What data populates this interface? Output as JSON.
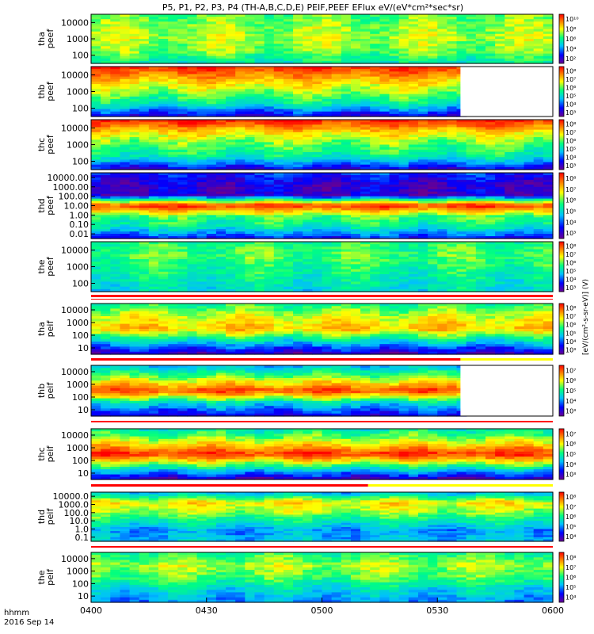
{
  "title": "P5, P1, P2, P3, P4 (TH-A,B,C,D,E) PEIF,PEEF EFlux eV/(eV*cm²*sec*sr)",
  "colorbar_unit_label": "[eV/(cm²-s-sr-eV)] (V)",
  "footer": {
    "time_label": "hhmm",
    "date_label": "2016 Sep 14"
  },
  "colors": {
    "scale": [
      "#6a0090",
      "#0000ff",
      "#00bfff",
      "#00ff80",
      "#ffff00",
      "#ff8000",
      "#ff0000"
    ],
    "line_red": "#ff0000",
    "line_yellow": "#ffff00"
  },
  "chart_data": {
    "type": "heatmap",
    "xlabel": "",
    "x_ticks": [
      "0400",
      "0430",
      "0500",
      "0530",
      "0600"
    ],
    "xlim": [
      "04:00",
      "06:00"
    ],
    "panels": [
      {
        "name": "tha peef",
        "ylabel": [
          "tha",
          "peef"
        ],
        "y_ticks": [
          "10000",
          "1000",
          "100"
        ],
        "cbar_ticks": [
          "10¹⁰",
          "10⁸",
          "10⁶",
          "10⁴",
          "10²"
        ],
        "profile": [
          0.55,
          0.6,
          0.62,
          0.58,
          0.45
        ],
        "data_end_frac": 1.0
      },
      {
        "name": "thb peef",
        "ylabel": [
          "thb",
          "peef"
        ],
        "y_ticks": [
          "10000",
          "1000",
          "100"
        ],
        "cbar_ticks": [
          "10⁸",
          "10⁷",
          "10⁶",
          "10⁵",
          "10⁴",
          "10³"
        ],
        "profile": [
          0.95,
          0.75,
          0.6,
          0.45,
          0.15
        ],
        "data_end_frac": 0.8
      },
      {
        "name": "thc peef",
        "ylabel": [
          "thc",
          "peef"
        ],
        "y_ticks": [
          "10000",
          "1000",
          "100"
        ],
        "cbar_ticks": [
          "10⁸",
          "10⁷",
          "10⁶",
          "10⁵",
          "10⁴",
          "10³"
        ],
        "profile": [
          0.95,
          0.7,
          0.55,
          0.45,
          0.15
        ],
        "data_end_frac": 1.0
      },
      {
        "name": "thd peef",
        "ylabel": [
          "thd",
          "peef"
        ],
        "y_ticks": [
          "10000.00",
          "1000.00",
          "100.00",
          "10.00",
          "1.00",
          "0.10",
          "0.01"
        ],
        "cbar_ticks": [
          "10⁸",
          "10⁷",
          "10⁶",
          "10⁵",
          "10⁴",
          "10³"
        ],
        "profile": [
          0.2,
          0.1,
          0.1,
          0.95,
          0.55,
          0.45,
          0.2
        ],
        "data_end_frac": 1.0
      },
      {
        "name": "the peef",
        "ylabel": [
          "the",
          "peef"
        ],
        "y_ticks": [
          "10000",
          "1000",
          "100"
        ],
        "cbar_ticks": [
          "10⁸",
          "10⁷",
          "10⁶",
          "10⁵",
          "10⁴",
          "10³"
        ],
        "profile": [
          0.5,
          0.55,
          0.5,
          0.45,
          0.4
        ],
        "data_end_frac": 1.0
      },
      {
        "name": "tha peif",
        "ylabel": [
          "tha",
          "peif"
        ],
        "y_ticks": [
          "10000",
          "1000",
          "100",
          "10"
        ],
        "cbar_ticks": [
          "10⁸",
          "10⁷",
          "10⁶",
          "10⁵",
          "10⁴",
          "10³"
        ],
        "profile": [
          0.5,
          0.65,
          0.75,
          0.4,
          0.1
        ],
        "data_end_frac": 1.0
      },
      {
        "name": "thb peif",
        "ylabel": [
          "thb",
          "peif"
        ],
        "y_ticks": [
          "10000",
          "1000",
          "100",
          "10"
        ],
        "cbar_ticks": [
          "10⁷",
          "10⁶",
          "10⁵",
          "10⁴",
          "10³"
        ],
        "profile": [
          0.35,
          0.6,
          0.92,
          0.4,
          0.15
        ],
        "data_end_frac": 0.8
      },
      {
        "name": "thc peif",
        "ylabel": [
          "thc",
          "peif"
        ],
        "y_ticks": [
          "10000",
          "1000",
          "100",
          "10"
        ],
        "cbar_ticks": [
          "10⁷",
          "10⁶",
          "10⁵",
          "10⁴",
          "10³"
        ],
        "profile": [
          0.45,
          0.65,
          0.95,
          0.5,
          0.1
        ],
        "data_end_frac": 1.0
      },
      {
        "name": "thd peif",
        "ylabel": [
          "thd",
          "peif"
        ],
        "y_ticks": [
          "10000.0",
          "1000.0",
          "100.0",
          "10.0",
          "1.0",
          "0.1"
        ],
        "cbar_ticks": [
          "10⁸",
          "10⁷",
          "10⁶",
          "10⁵",
          "10⁴"
        ],
        "profile": [
          0.35,
          0.7,
          0.6,
          0.45,
          0.3,
          0.35
        ],
        "data_end_frac": 1.0
      },
      {
        "name": "the peif",
        "ylabel": [
          "the",
          "peif"
        ],
        "y_ticks": [
          "10000",
          "1000",
          "100",
          "10"
        ],
        "cbar_ticks": [
          "10⁸",
          "10⁷",
          "10⁶",
          "10⁵",
          "10⁴"
        ],
        "profile": [
          0.5,
          0.62,
          0.55,
          0.4,
          0.3
        ],
        "data_end_frac": 1.0
      }
    ]
  }
}
